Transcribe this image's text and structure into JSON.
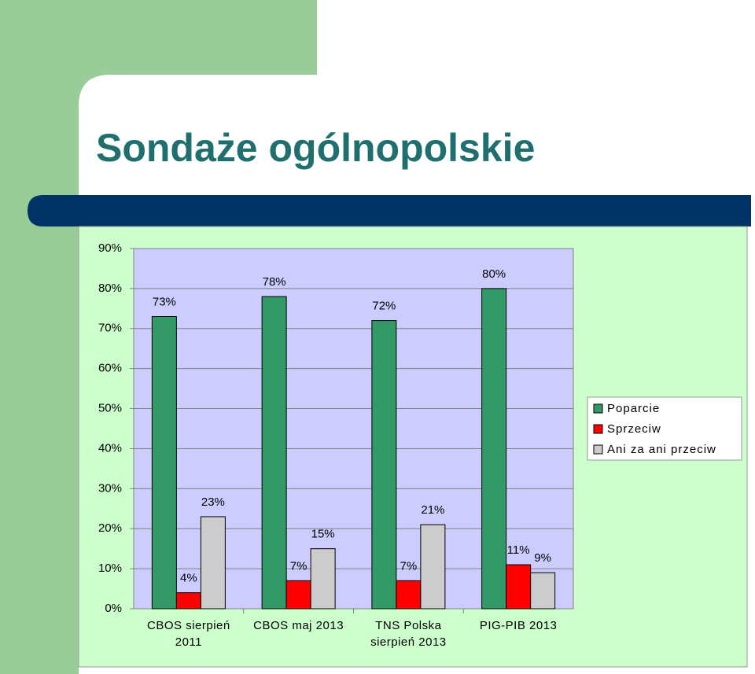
{
  "chart_data": {
    "type": "bar",
    "title": "Sondaże ogólnopolskie",
    "categories": [
      "CBOS sierpień 2011",
      "CBOS maj 2013",
      "TNS Polska sierpień 2013",
      "PIG-PIB 2013"
    ],
    "series": [
      {
        "name": "Poparcie",
        "color": "#339966",
        "values": [
          73,
          78,
          72,
          80
        ],
        "value_labels": [
          "73%",
          "78%",
          "72%",
          "80%"
        ]
      },
      {
        "name": "Sprzeciw",
        "color": "#ff0000",
        "values": [
          4,
          7,
          7,
          11
        ],
        "value_labels": [
          "4%",
          "7%",
          "7%",
          "11%"
        ]
      },
      {
        "name": "Ani za ani przeciw",
        "color": "#cccccc",
        "values": [
          23,
          15,
          21,
          9
        ],
        "value_labels": [
          "23%",
          "15%",
          "21%",
          "9%"
        ]
      }
    ],
    "ylim": [
      0,
      90
    ],
    "yticks": [
      {
        "value": 0,
        "label": "0%"
      },
      {
        "value": 10,
        "label": "10%"
      },
      {
        "value": 20,
        "label": "20%"
      },
      {
        "value": 30,
        "label": "30%"
      },
      {
        "value": 40,
        "label": "40%"
      },
      {
        "value": 50,
        "label": "50%"
      },
      {
        "value": 60,
        "label": "60%"
      },
      {
        "value": 70,
        "label": "70%"
      },
      {
        "value": 80,
        "label": "80%"
      },
      {
        "value": 90,
        "label": "90%"
      }
    ],
    "grid": true,
    "legend": "right"
  }
}
